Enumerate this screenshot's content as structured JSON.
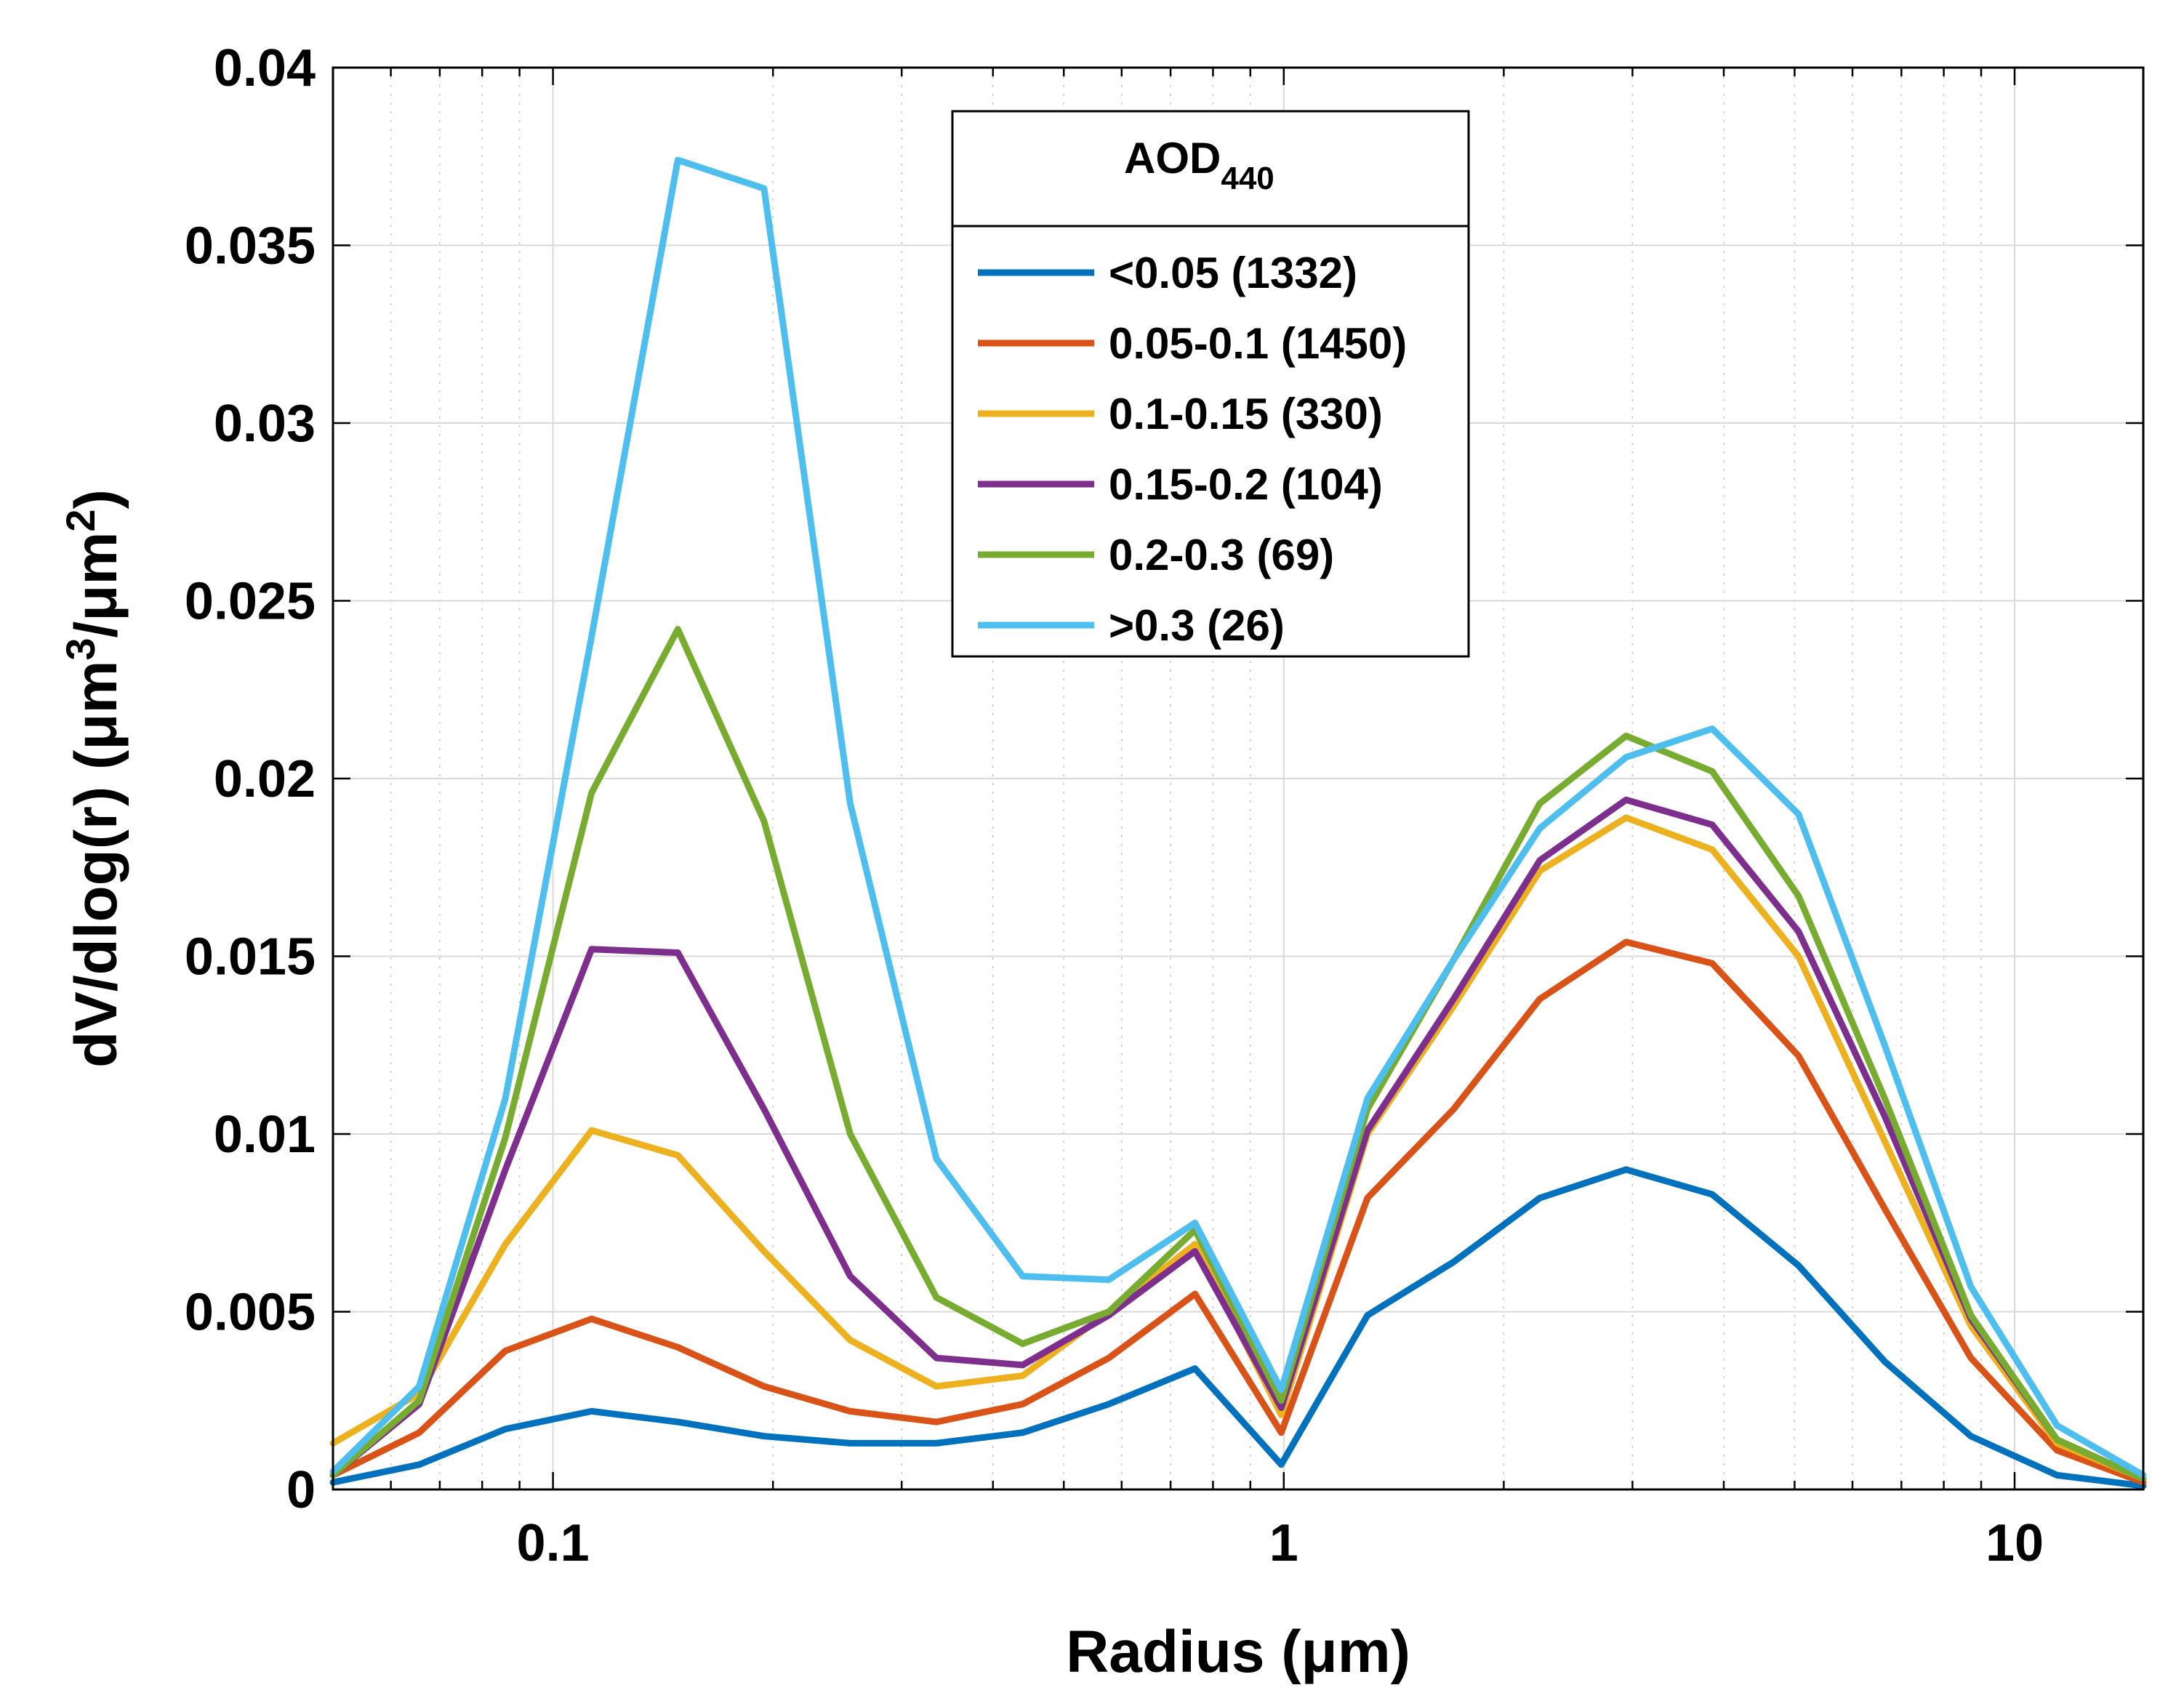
{
  "chart_data": {
    "type": "line",
    "title": "",
    "xlabel": "Radius (μm)",
    "ylabel_parts": [
      "dV/dlog(r) (μm",
      "3",
      "/μm",
      "2",
      ")"
    ],
    "xscale": "log",
    "xlim": [
      0.05,
      15
    ],
    "ylim": [
      0,
      0.04
    ],
    "grid": true,
    "x_ticks": [
      0.1,
      1,
      10
    ],
    "x_tick_labels": [
      "0.1",
      "1",
      "10"
    ],
    "y_ticks": [
      0,
      0.005,
      0.01,
      0.015,
      0.02,
      0.025,
      0.03,
      0.035,
      0.04
    ],
    "y_tick_labels": [
      "0",
      "0.005",
      "0.01",
      "0.015",
      "0.02",
      "0.025",
      "0.03",
      "0.035",
      "0.04"
    ],
    "legend": {
      "location": "top-center",
      "title_main": "AOD",
      "title_sub": "440"
    },
    "x": [
      0.05,
      0.065604,
      0.086077,
      0.112939,
      0.148184,
      0.194429,
      0.255105,
      0.334716,
      0.439173,
      0.576227,
      0.756052,
      0.991996,
      1.301571,
      1.707757,
      2.240702,
      2.939966,
      3.857452,
      5.06126,
      6.640745,
      8.713145,
      11.432287,
      15.0
    ],
    "series": [
      {
        "name": "<0.05 (1332)",
        "color": "#0072BD",
        "values": [
          0.0002,
          0.0007,
          0.0017,
          0.0022,
          0.0019,
          0.0015,
          0.0013,
          0.0013,
          0.0016,
          0.0024,
          0.0034,
          0.0007,
          0.0049,
          0.0064,
          0.0082,
          0.009,
          0.0083,
          0.0063,
          0.0036,
          0.0015,
          0.0004,
          0.0001
        ]
      },
      {
        "name": "0.05-0.1 (1450)",
        "color": "#D95319",
        "values": [
          0.0004,
          0.0016,
          0.0039,
          0.0048,
          0.004,
          0.0029,
          0.0022,
          0.0019,
          0.0024,
          0.0037,
          0.0055,
          0.0016,
          0.0082,
          0.0107,
          0.0138,
          0.0154,
          0.0148,
          0.0122,
          0.0079,
          0.0037,
          0.0011,
          0.0002
        ]
      },
      {
        "name": "0.1-0.15 (330)",
        "color": "#EDB120",
        "values": [
          0.0013,
          0.0027,
          0.0069,
          0.0101,
          0.0094,
          0.0067,
          0.0042,
          0.0029,
          0.0032,
          0.005,
          0.0069,
          0.0021,
          0.01,
          0.0136,
          0.0174,
          0.0189,
          0.018,
          0.015,
          0.0098,
          0.0046,
          0.0013,
          0.0003
        ]
      },
      {
        "name": "0.15-0.2 (104)",
        "color": "#7E2F8E",
        "values": [
          0.0004,
          0.0024,
          0.009,
          0.0152,
          0.0151,
          0.0107,
          0.006,
          0.0037,
          0.0035,
          0.0049,
          0.0067,
          0.0023,
          0.0101,
          0.0138,
          0.0177,
          0.0194,
          0.0187,
          0.0157,
          0.0105,
          0.0048,
          0.0014,
          0.0003
        ]
      },
      {
        "name": "0.2-0.3 (69)",
        "color": "#77AC30",
        "values": [
          0.0004,
          0.0025,
          0.0099,
          0.0196,
          0.0242,
          0.0188,
          0.01,
          0.0054,
          0.0041,
          0.005,
          0.0073,
          0.0025,
          0.0107,
          0.0149,
          0.0193,
          0.0212,
          0.0202,
          0.0167,
          0.011,
          0.0049,
          0.0014,
          0.0003
        ]
      },
      {
        "name": ">0.3 (26)",
        "color": "#4DBEEE",
        "values": [
          0.0005,
          0.0029,
          0.011,
          0.024,
          0.0374,
          0.0366,
          0.0193,
          0.0093,
          0.006,
          0.0059,
          0.0075,
          0.0028,
          0.011,
          0.0149,
          0.0186,
          0.0206,
          0.0214,
          0.019,
          0.0125,
          0.0057,
          0.0018,
          0.0004
        ]
      }
    ]
  }
}
